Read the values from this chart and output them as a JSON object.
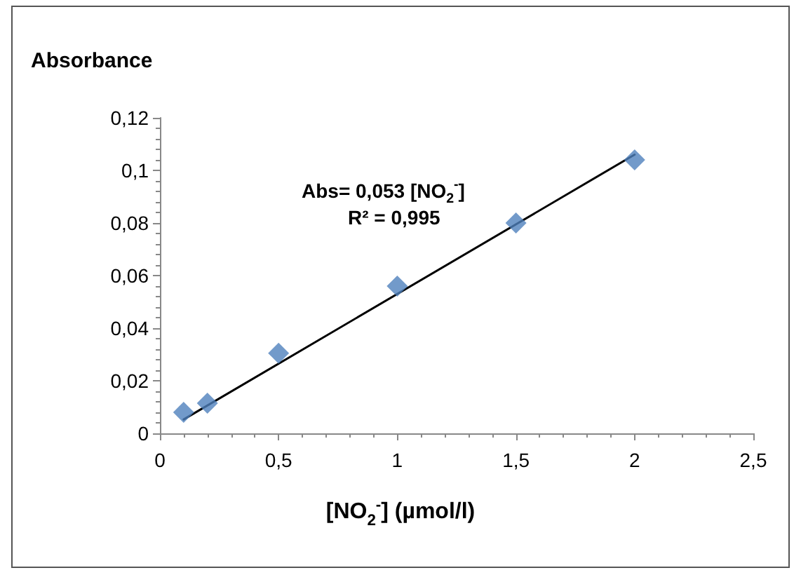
{
  "chart_data": {
    "type": "scatter",
    "ylabel": "Absorbance",
    "xlabel": "[NO$_{2}$$^{-}$] (µmol/l)",
    "annotations": [
      "Abs= 0,053 [NO$_{2}$$^{-}$]",
      "R² = 0,995"
    ],
    "series": [
      {
        "color": "#4f81bd",
        "marker": "diamond",
        "x": [
          0.1,
          0.2,
          0.5,
          1,
          1.5,
          2
        ],
        "values": [
          0.008,
          0.0115,
          0.0305,
          0.056,
          0.08,
          0.104
        ]
      },
      {
        "type": "line",
        "color": "#000000",
        "marker": "none",
        "line_style": "solid",
        "x": [
          0.1,
          2
        ],
        "values": [
          0.0053,
          0.106
        ]
      }
    ],
    "xlim": [
      0,
      2.5
    ],
    "xticks": [
      0,
      {
        "value": 0.5,
        "label": "0,5"
      },
      1,
      {
        "value": 1.5,
        "label": "1,5"
      },
      2,
      {
        "value": 2.5,
        "label": "2,5"
      }
    ],
    "ylim": [
      0,
      0.12
    ],
    "yticks": [
      0,
      {
        "value": 0.02,
        "label": "0,02"
      },
      {
        "value": 0.04,
        "label": "0,04"
      },
      {
        "value": 0.06,
        "label": "0,06"
      },
      {
        "value": 0.08,
        "label": "0,08"
      },
      {
        "value": 0.1,
        "label": "0,1"
      },
      {
        "value": 0.12,
        "label": "0,12"
      }
    ],
    "grid": false,
    "legend": false
  }
}
